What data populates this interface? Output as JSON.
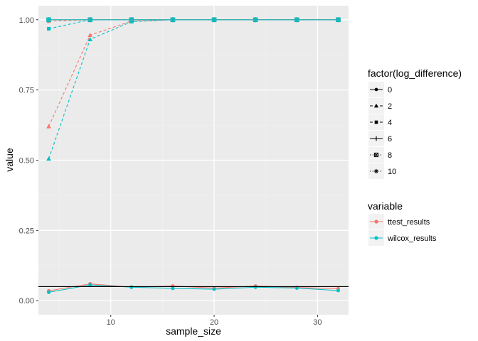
{
  "chart_data": {
    "type": "line",
    "xlabel": "sample_size",
    "ylabel": "value",
    "xlim": [
      3,
      33
    ],
    "ylim": [
      -0.05,
      1.05
    ],
    "x_ticks": [
      10,
      20,
      30
    ],
    "x_tick_labels": [
      "10",
      "20",
      "30"
    ],
    "y_ticks": [
      0,
      0.25,
      0.5,
      0.75,
      1
    ],
    "y_tick_labels": [
      "0.00",
      "0.25",
      "0.50",
      "0.75",
      "1.00"
    ],
    "grid": true,
    "reference_line": {
      "y": 0.05,
      "color": "#000000"
    },
    "x": [
      4,
      8,
      12,
      16,
      20,
      24,
      28,
      32
    ],
    "shape_legend": {
      "title": "factor(log_difference)",
      "entries": [
        {
          "label": "0",
          "shape": "circle",
          "linetype": "solid"
        },
        {
          "label": "2",
          "shape": "triangle",
          "linetype": "dashed"
        },
        {
          "label": "4",
          "shape": "square",
          "linetype": "dashed"
        },
        {
          "label": "6",
          "shape": "plus",
          "linetype": "solid"
        },
        {
          "label": "8",
          "shape": "boxcross",
          "linetype": "dotted"
        },
        {
          "label": "10",
          "shape": "asterisk",
          "linetype": "dotted"
        }
      ]
    },
    "color_legend": {
      "title": "variable",
      "entries": [
        {
          "label": "ttest_results",
          "color": "#F8766D"
        },
        {
          "label": "wilcox_results",
          "color": "#00BFC4"
        }
      ]
    },
    "series": [
      {
        "variable": "ttest_results",
        "log_difference": "0",
        "values": [
          0.035,
          0.06,
          0.048,
          0.052,
          0.045,
          0.052,
          0.047,
          0.043
        ]
      },
      {
        "variable": "wilcox_results",
        "log_difference": "0",
        "values": [
          0.03,
          0.056,
          0.048,
          0.044,
          0.041,
          0.048,
          0.045,
          0.036
        ]
      },
      {
        "variable": "ttest_results",
        "log_difference": "2",
        "values": [
          0.62,
          0.945,
          0.995,
          1.0,
          1.0,
          1.0,
          1.0,
          1.0
        ]
      },
      {
        "variable": "wilcox_results",
        "log_difference": "2",
        "values": [
          0.505,
          0.93,
          0.993,
          1.0,
          1.0,
          1.0,
          1.0,
          1.0
        ]
      },
      {
        "variable": "ttest_results",
        "log_difference": "4",
        "values": [
          0.995,
          1.0,
          1.0,
          1.0,
          1.0,
          1.0,
          1.0,
          1.0
        ]
      },
      {
        "variable": "wilcox_results",
        "log_difference": "4",
        "values": [
          0.968,
          1.0,
          1.0,
          1.0,
          1.0,
          1.0,
          1.0,
          1.0
        ]
      },
      {
        "variable": "ttest_results",
        "log_difference": "6",
        "values": [
          1.0,
          1.0,
          1.0,
          1.0,
          1.0,
          1.0,
          1.0,
          1.0
        ]
      },
      {
        "variable": "wilcox_results",
        "log_difference": "6",
        "values": [
          1.0,
          1.0,
          1.0,
          1.0,
          1.0,
          1.0,
          1.0,
          1.0
        ]
      },
      {
        "variable": "ttest_results",
        "log_difference": "8",
        "values": [
          1.0,
          1.0,
          1.0,
          1.0,
          1.0,
          1.0,
          1.0,
          1.0
        ]
      },
      {
        "variable": "wilcox_results",
        "log_difference": "8",
        "values": [
          1.0,
          1.0,
          1.0,
          1.0,
          1.0,
          1.0,
          1.0,
          1.0
        ]
      },
      {
        "variable": "ttest_results",
        "log_difference": "10",
        "values": [
          1.0,
          1.0,
          1.0,
          1.0,
          1.0,
          1.0,
          1.0,
          1.0
        ]
      },
      {
        "variable": "wilcox_results",
        "log_difference": "10",
        "values": [
          1.0,
          1.0,
          1.0,
          1.0,
          1.0,
          1.0,
          1.0,
          1.0
        ]
      }
    ]
  }
}
